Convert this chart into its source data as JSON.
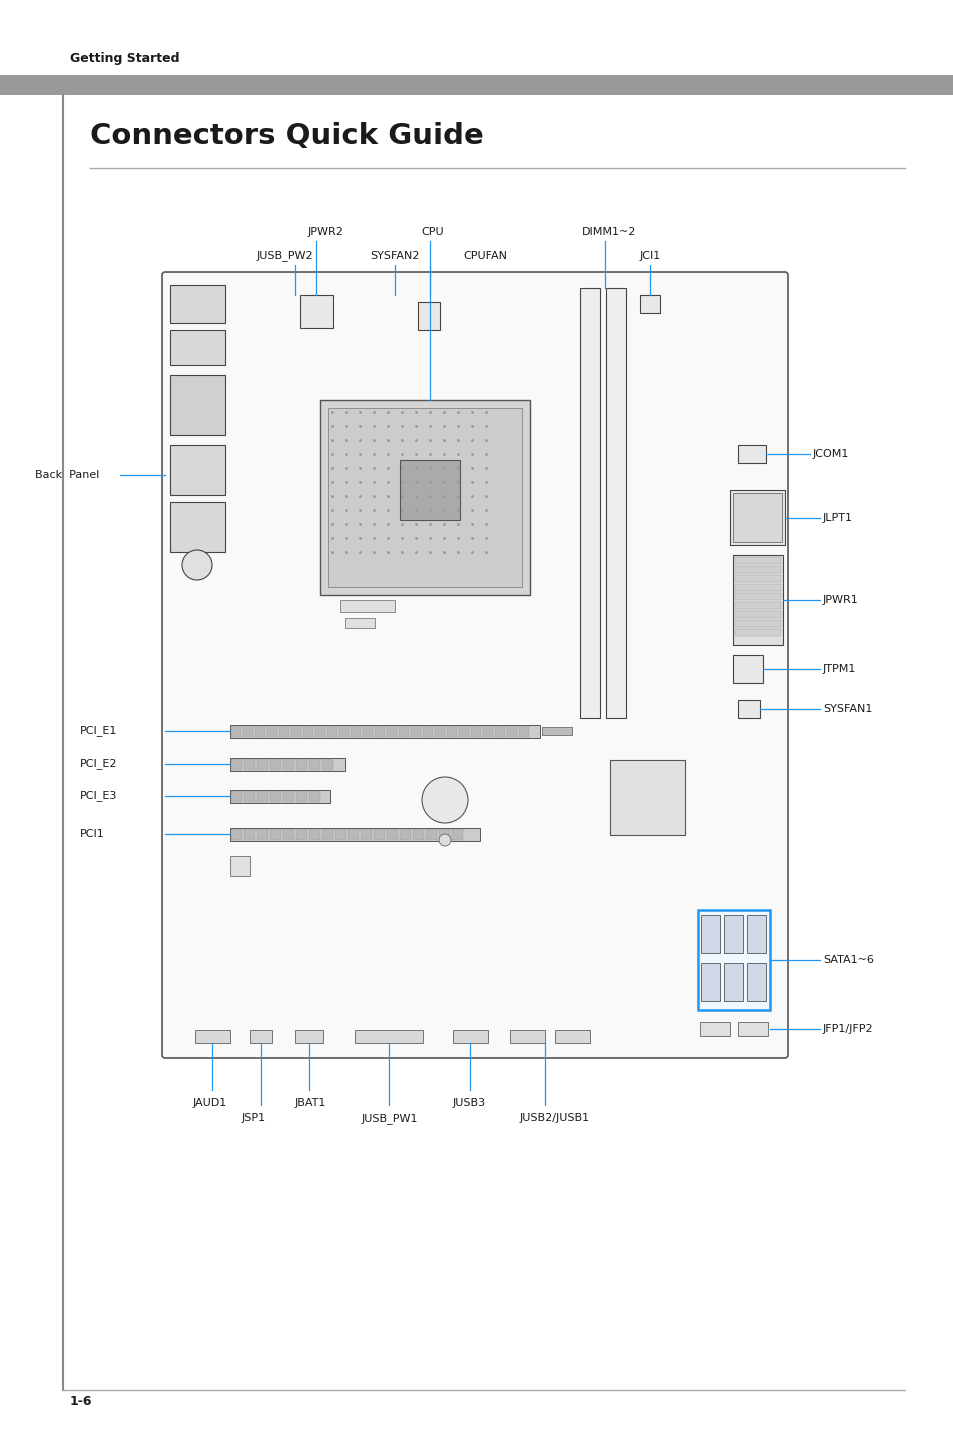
{
  "page_bg": "#ffffff",
  "header_bar_color": "#999999",
  "header_text": "Getting Started",
  "header_text_color": "#1a1a1a",
  "title": "Connectors Quick Guide",
  "title_color": "#1a1a1a",
  "title_underline_color": "#aaaaaa",
  "footer_text": "1-6",
  "footer_line_color": "#aaaaaa",
  "connector_line_color": "#2196F3",
  "connector_text_color": "#1a1a1a",
  "board_border": "#555555",
  "lc": "#2196F3",
  "tc": "#1a1a1a",
  "fs": 8.0
}
